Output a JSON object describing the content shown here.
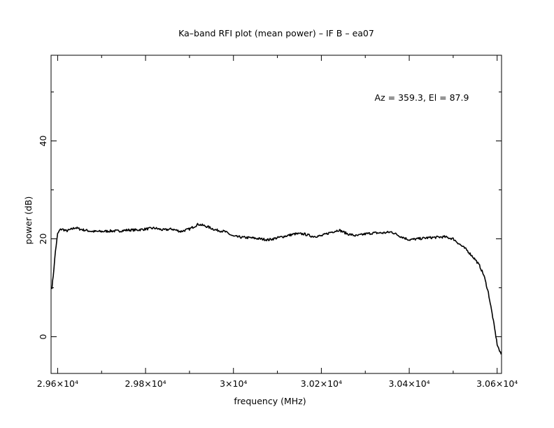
{
  "chart_data": {
    "type": "line",
    "title": "Ka–band RFI plot (mean power) – IF B – ea07",
    "xlabel": "frequency (MHz)",
    "ylabel": "power (dB)",
    "annotation": "Az = 359.3, El = 87.9",
    "xlim": [
      29585,
      30610
    ],
    "ylim": [
      -7.5,
      57.5
    ],
    "grid": false,
    "x_ticks": [
      {
        "value": 29600,
        "label": "2.96×10⁴"
      },
      {
        "value": 29800,
        "label": "2.98×10⁴"
      },
      {
        "value": 30000,
        "label": "3×10⁴"
      },
      {
        "value": 30200,
        "label": "3.02×10⁴"
      },
      {
        "value": 30400,
        "label": "3.04×10⁴"
      },
      {
        "value": 30600,
        "label": "3.06×10⁴"
      }
    ],
    "y_ticks": [
      {
        "value": 0,
        "label": "0"
      },
      {
        "value": 20,
        "label": "20"
      },
      {
        "value": 40,
        "label": "40"
      }
    ],
    "series": [
      {
        "color": "#000000",
        "x": [
          29587,
          29590,
          29595,
          29600,
          29605,
          29610,
          29620,
          29630,
          29640,
          29650,
          29660,
          29680,
          29700,
          29720,
          29740,
          29760,
          29780,
          29800,
          29820,
          29840,
          29860,
          29880,
          29900,
          29920,
          29940,
          29960,
          29980,
          30000,
          30020,
          30040,
          30060,
          30080,
          30100,
          30120,
          30140,
          30160,
          30180,
          30200,
          30220,
          30240,
          30260,
          30280,
          30300,
          30320,
          30340,
          30360,
          30380,
          30400,
          30420,
          30440,
          30460,
          30480,
          30500,
          30520,
          30530,
          30540,
          30550,
          30560,
          30570,
          30580,
          30590,
          30600,
          30605,
          30609
        ],
        "y": [
          10.0,
          12.5,
          17.5,
          21.0,
          21.8,
          22.0,
          21.6,
          21.9,
          22.3,
          22.0,
          21.8,
          21.5,
          21.5,
          21.6,
          21.6,
          21.8,
          21.8,
          22.0,
          22.2,
          21.8,
          22.0,
          21.5,
          22.0,
          23.0,
          22.5,
          21.8,
          21.5,
          20.5,
          20.3,
          20.2,
          20.0,
          19.8,
          20.2,
          20.6,
          21.0,
          21.0,
          20.5,
          20.6,
          21.3,
          21.8,
          21.0,
          20.6,
          21.0,
          21.2,
          21.2,
          21.4,
          20.5,
          19.8,
          20.0,
          20.2,
          20.3,
          20.4,
          20.0,
          18.5,
          17.8,
          16.8,
          15.8,
          14.5,
          12.5,
          9.0,
          4.0,
          -1.5,
          -2.8,
          -3.6
        ]
      }
    ]
  }
}
